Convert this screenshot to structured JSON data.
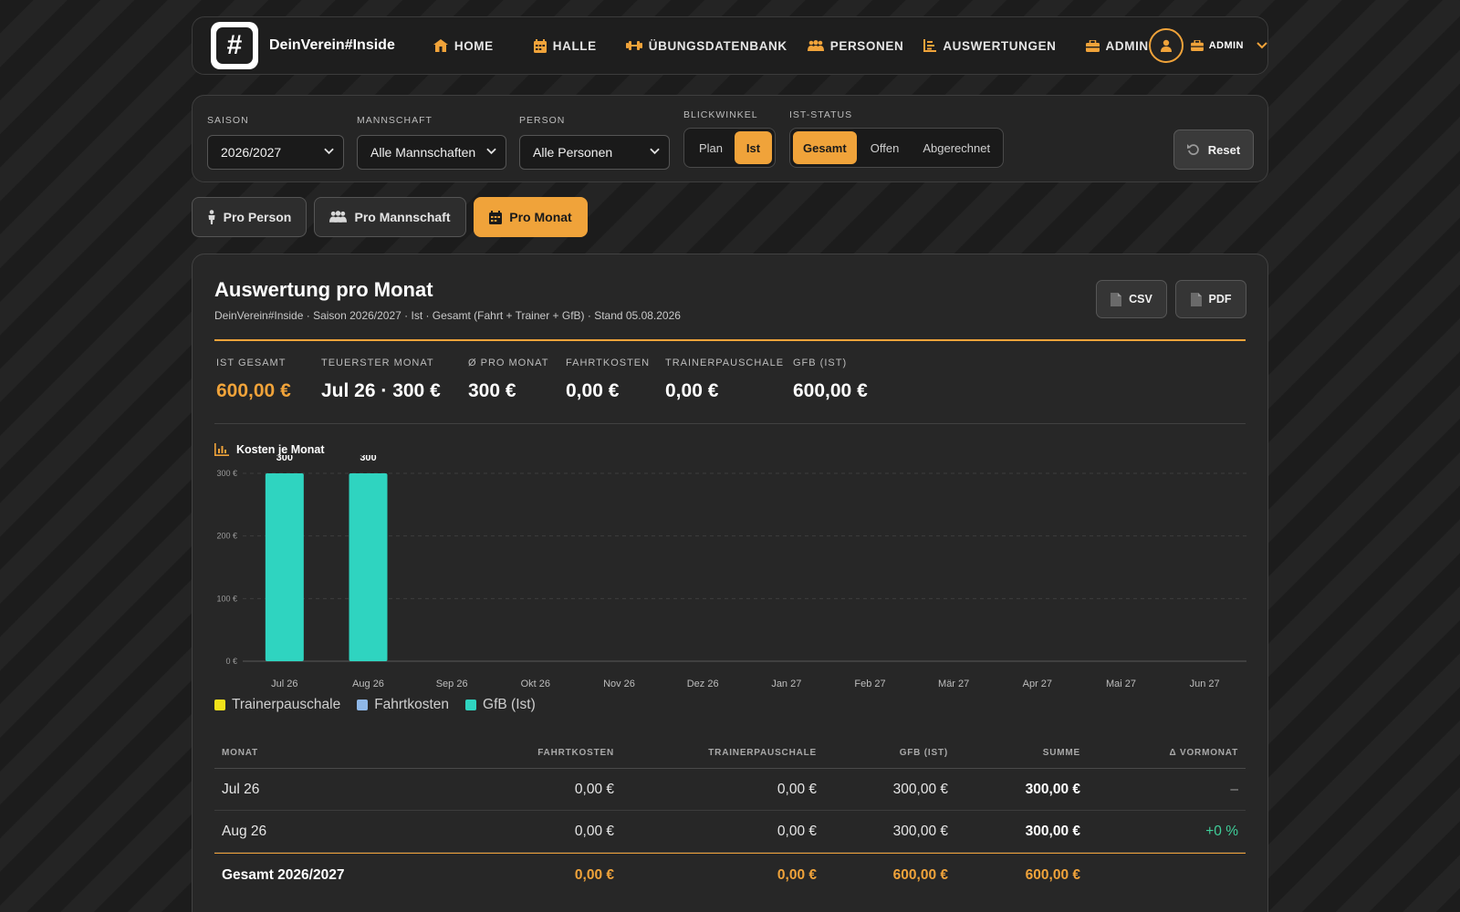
{
  "nav": {
    "brand": "DeinVerein#Inside",
    "logo_symbol": "#",
    "items": [
      {
        "label": "HOME",
        "icon": "home-icon"
      },
      {
        "label": "HALLE",
        "icon": "calendar-icon"
      },
      {
        "label": "ÜBUNGSDATENBANK",
        "icon": "dumbbell-icon"
      },
      {
        "label": "PERSONEN",
        "icon": "people-icon"
      },
      {
        "label": "AUSWERTUNGEN",
        "icon": "chart-icon"
      },
      {
        "label": "ADMIN",
        "icon": "toolbox-icon"
      }
    ],
    "user_label": "ADMIN",
    "accent": "#f0a33a"
  },
  "filters": {
    "saison_label": "SAISON",
    "saison_value": "2026/2027",
    "mannschaft_label": "MANNSCHAFT",
    "mannschaft_value": "Alle Mannschaften",
    "person_label": "PERSON",
    "person_value": "Alle Personen",
    "blickwinkel_label": "BLICKWINKEL",
    "blickwinkel_options": [
      "Plan",
      "Ist"
    ],
    "blickwinkel_selected": "Ist",
    "status_label": "IST-STATUS",
    "status_options": [
      "Gesamt",
      "Offen",
      "Abgerechnet"
    ],
    "status_selected": "Gesamt",
    "reset_label": "Reset"
  },
  "tabs": [
    {
      "label": "Pro Person",
      "active": false
    },
    {
      "label": "Pro Mannschaft",
      "active": false
    },
    {
      "label": "Pro Monat",
      "active": true
    }
  ],
  "report": {
    "title": "Auswertung pro Monat",
    "subtitle": "DeinVerein#Inside · Saison 2026/2027 · Ist · Gesamt (Fahrt + Trainer + GfB) · Stand 05.08.2026",
    "csv_label": "CSV",
    "pdf_label": "PDF"
  },
  "kpis": [
    {
      "label": "IST GESAMT",
      "value": "600,00 €",
      "accent": true
    },
    {
      "label": "TEUERSTER MONAT",
      "value": "Jul 26 · 300 €",
      "accent": false
    },
    {
      "label": "Ø PRO MONAT",
      "value": "300 €",
      "accent": false
    },
    {
      "label": "FAHRTKOSTEN",
      "value": "0,00 €",
      "accent": false
    },
    {
      "label": "TRAINERPAUSCHALE",
      "value": "0,00 €",
      "accent": false
    },
    {
      "label": "GFB (IST)",
      "value": "600,00 €",
      "accent": false
    }
  ],
  "chart_title": "Kosten je Monat",
  "chart_data": {
    "type": "bar",
    "title": "Kosten je Monat",
    "categories": [
      "Jul 26",
      "Aug 26",
      "Sep 26",
      "Okt 26",
      "Nov 26",
      "Dez 26",
      "Jan 27",
      "Feb 27",
      "Mär 27",
      "Apr 27",
      "Mai 27",
      "Jun 27"
    ],
    "series": [
      {
        "name": "Trainerpauschale",
        "color": "#f2e21a",
        "values": [
          0,
          0,
          0,
          0,
          0,
          0,
          0,
          0,
          0,
          0,
          0,
          0
        ]
      },
      {
        "name": "Fahrtkosten",
        "color": "#8fb8e8",
        "values": [
          0,
          0,
          0,
          0,
          0,
          0,
          0,
          0,
          0,
          0,
          0,
          0
        ]
      },
      {
        "name": "GfB (Ist)",
        "color": "#2fd4c0",
        "values": [
          300,
          300,
          0,
          0,
          0,
          0,
          0,
          0,
          0,
          0,
          0,
          0
        ]
      }
    ],
    "total_labels": [
      "300",
      "300",
      "",
      "",
      "",
      "",
      "",
      "",
      "",
      "",
      "",
      ""
    ],
    "yticks": [
      0,
      100,
      200,
      300
    ],
    "ytick_labels": [
      "0 €",
      "100 €",
      "200 €",
      "300 €"
    ],
    "ylim": [
      0,
      300
    ],
    "stacked": true,
    "grid": true,
    "legend": "bottom-left"
  },
  "table": {
    "headers": [
      "MONAT",
      "FAHRTKOSTEN",
      "TRAINERPAUSCHALE",
      "GFB (IST)",
      "SUMME",
      "Δ VORMONAT"
    ],
    "rows": [
      {
        "monat": "Jul 26",
        "fahrt": "0,00 €",
        "trainer": "0,00 €",
        "gfb": "300,00 €",
        "summe": "300,00 €",
        "delta": "–"
      },
      {
        "monat": "Aug 26",
        "fahrt": "0,00 €",
        "trainer": "0,00 €",
        "gfb": "300,00 €",
        "summe": "300,00 €",
        "delta": "+0 %"
      }
    ],
    "total": {
      "monat": "Gesamt 2026/2027",
      "fahrt": "0,00 €",
      "trainer": "0,00 €",
      "gfb": "600,00 €",
      "summe": "600,00 €"
    }
  }
}
